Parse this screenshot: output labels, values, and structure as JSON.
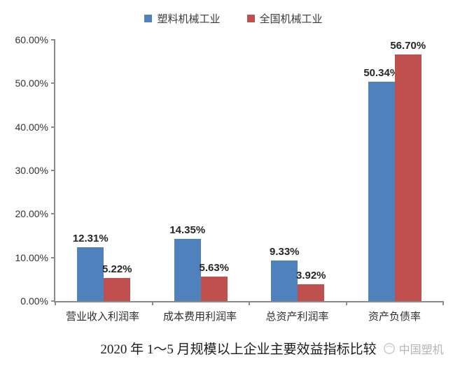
{
  "chart_data": {
    "type": "bar",
    "title": "2020 年 1～5 月规模以上企业主要效益指标比较",
    "categories": [
      "营业收入利润率",
      "成本费用利润率",
      "总资产利润率",
      "资产负债率"
    ],
    "series": [
      {
        "name": "塑料机械工业",
        "color": "#4F81BD",
        "values": [
          12.31,
          14.35,
          9.33,
          50.34
        ],
        "labels": [
          "12.31%",
          "14.35%",
          "9.33%",
          "50.34%"
        ]
      },
      {
        "name": "全国机械工业",
        "color": "#C0504D",
        "values": [
          5.22,
          5.63,
          3.92,
          56.7
        ],
        "labels": [
          "5.22%",
          "5.63%",
          "3.92%",
          "56.70%"
        ]
      }
    ],
    "ylim": [
      0,
      60
    ],
    "y_tick_step": 10,
    "y_tick_labels": [
      "0.00%",
      "10.00%",
      "20.00%",
      "30.00%",
      "40.00%",
      "50.00%",
      "60.00%"
    ],
    "grid": false,
    "legend_position": "top",
    "xlabel": "",
    "ylabel": ""
  },
  "caption": {
    "title": "2020 年 1～5 月规模以上企业主要效益指标比较",
    "brand": "中国塑机"
  },
  "colors": {
    "series_blue": "#4F81BD",
    "series_red": "#C0504D",
    "axis": "#8C8C8C",
    "tick_text": "#333333",
    "brand_text": "#B5B5B5"
  }
}
